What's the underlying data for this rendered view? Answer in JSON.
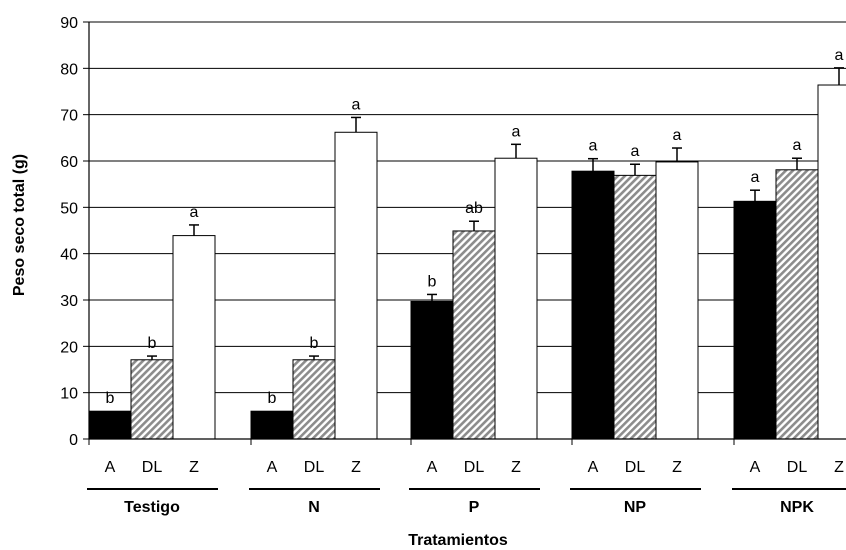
{
  "chart_data": {
    "type": "bar",
    "xlabel": "Tratamientos",
    "ylabel": "Peso seco total (g)",
    "ylim": [
      0,
      90
    ],
    "yticks": [
      0,
      10,
      20,
      30,
      40,
      50,
      60,
      70,
      80,
      90
    ],
    "grid": "horizontal",
    "groups": [
      "Testigo",
      "N",
      "P",
      "NP",
      "NPK"
    ],
    "subcategories": [
      "A",
      "DL",
      "Z"
    ],
    "series": [
      {
        "name": "A",
        "color": "#000000",
        "pattern": "solid",
        "values": [
          6,
          6,
          29.7,
          57.8,
          51.3
        ],
        "errors": [
          0,
          0,
          1.5,
          2.7,
          2.4
        ],
        "letters": [
          "b",
          "b",
          "b",
          "a",
          "a"
        ]
      },
      {
        "name": "DL",
        "color": "#9a9a9a",
        "pattern": "diagonal-hatch",
        "values": [
          17.1,
          17.1,
          44.9,
          56.9,
          58.1
        ],
        "errors": [
          0.8,
          0.8,
          2.1,
          2.4,
          2.5
        ],
        "letters": [
          "b",
          "b",
          "ab",
          "a",
          "a"
        ]
      },
      {
        "name": "Z",
        "color": "#ffffff",
        "pattern": "empty",
        "values": [
          43.9,
          66.2,
          60.6,
          59.8,
          76.4
        ],
        "errors": [
          2.3,
          3.2,
          3.0,
          3.0,
          3.7
        ],
        "letters": [
          "a",
          "a",
          "a",
          "a",
          "a"
        ]
      }
    ]
  }
}
